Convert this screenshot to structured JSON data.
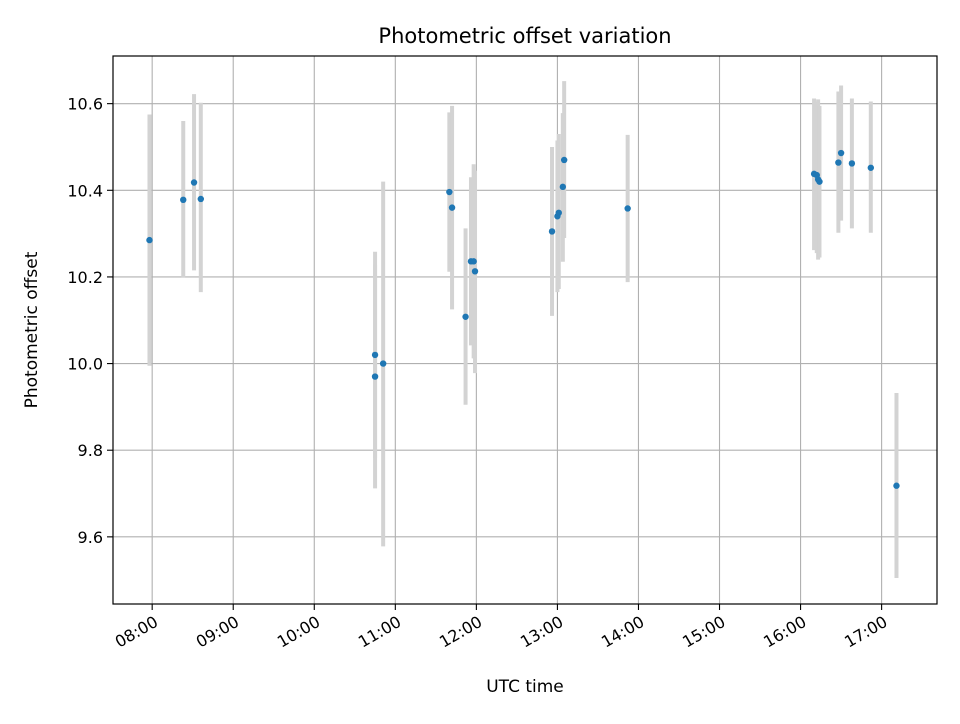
{
  "chart_data": {
    "type": "scatter",
    "title": "Photometric offset variation",
    "xlabel": "UTC time",
    "ylabel": "Photometric offset",
    "x_ticks": [
      "08:00",
      "09:00",
      "10:00",
      "11:00",
      "12:00",
      "13:00",
      "14:00",
      "15:00",
      "16:00",
      "17:00"
    ],
    "y_ticks": [
      "9.6",
      "9.8",
      "10.0",
      "10.2",
      "10.4",
      "10.6"
    ],
    "xlim": [
      "07:31",
      "17:41"
    ],
    "ylim": [
      9.445,
      10.71
    ],
    "grid": true,
    "colors": {
      "point": "#1f77b4",
      "errorbar": "#d3d3d3",
      "grid": "#b0b0b0"
    },
    "points": [
      {
        "time": "07:58",
        "value": 10.285,
        "low": 9.995,
        "high": 10.575
      },
      {
        "time": "08:23",
        "value": 10.378,
        "low": 10.198,
        "high": 10.56
      },
      {
        "time": "08:31",
        "value": 10.418,
        "low": 10.215,
        "high": 10.622
      },
      {
        "time": "08:36",
        "value": 10.38,
        "low": 10.165,
        "high": 10.602
      },
      {
        "time": "10:45",
        "value": 10.02,
        "low": 9.782,
        "high": 10.258
      },
      {
        "time": "10:45",
        "value": 9.97,
        "low": 9.712,
        "high": 10.228
      },
      {
        "time": "10:51",
        "value": 10.0,
        "low": 9.578,
        "high": 10.42
      },
      {
        "time": "11:40",
        "value": 10.396,
        "low": 10.212,
        "high": 10.58
      },
      {
        "time": "11:42",
        "value": 10.36,
        "low": 10.125,
        "high": 10.595
      },
      {
        "time": "11:52",
        "value": 10.108,
        "low": 9.905,
        "high": 10.312
      },
      {
        "time": "11:56",
        "value": 10.236,
        "low": 10.042,
        "high": 10.43
      },
      {
        "time": "11:58",
        "value": 10.236,
        "low": 10.012,
        "high": 10.46
      },
      {
        "time": "11:59",
        "value": 10.213,
        "low": 9.978,
        "high": 10.445
      },
      {
        "time": "12:56",
        "value": 10.305,
        "low": 10.11,
        "high": 10.5
      },
      {
        "time": "13:00",
        "value": 10.34,
        "low": 10.165,
        "high": 10.515
      },
      {
        "time": "13:01",
        "value": 10.348,
        "low": 10.172,
        "high": 10.53
      },
      {
        "time": "13:04",
        "value": 10.408,
        "low": 10.235,
        "high": 10.578
      },
      {
        "time": "13:05",
        "value": 10.47,
        "low": 10.29,
        "high": 10.652
      },
      {
        "time": "13:52",
        "value": 10.358,
        "low": 10.188,
        "high": 10.528
      },
      {
        "time": "16:10",
        "value": 10.438,
        "low": 10.262,
        "high": 10.612
      },
      {
        "time": "16:12",
        "value": 10.435,
        "low": 10.255,
        "high": 10.605
      },
      {
        "time": "16:13",
        "value": 10.425,
        "low": 10.24,
        "high": 10.61
      },
      {
        "time": "16:14",
        "value": 10.42,
        "low": 10.245,
        "high": 10.595
      },
      {
        "time": "16:28",
        "value": 10.464,
        "low": 10.302,
        "high": 10.628
      },
      {
        "time": "16:30",
        "value": 10.486,
        "low": 10.33,
        "high": 10.642
      },
      {
        "time": "16:38",
        "value": 10.462,
        "low": 10.312,
        "high": 10.612
      },
      {
        "time": "16:52",
        "value": 10.452,
        "low": 10.302,
        "high": 10.605
      },
      {
        "time": "17:11",
        "value": 9.718,
        "low": 9.505,
        "high": 9.932
      }
    ]
  }
}
